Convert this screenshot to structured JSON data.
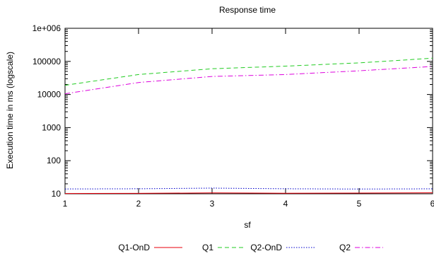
{
  "chart_data": {
    "type": "line",
    "title": "Response time",
    "xlabel": "sf",
    "ylabel": "Execution time in ms (logscale)",
    "x": [
      1,
      2,
      3,
      4,
      5,
      6
    ],
    "xlim": [
      1,
      6
    ],
    "ylim": [
      10,
      1000000
    ],
    "yscale": "log",
    "xticks": [
      "1",
      "2",
      "3",
      "4",
      "5",
      "6"
    ],
    "yticks": [
      {
        "value": 10,
        "label": "10"
      },
      {
        "value": 100,
        "label": "100"
      },
      {
        "value": 1000,
        "label": "1000"
      },
      {
        "value": 10000,
        "label": "10000"
      },
      {
        "value": 100000,
        "label": "100000"
      },
      {
        "value": 1000000,
        "label": "1e+006"
      }
    ],
    "grid": false,
    "legend_position": "bottom",
    "series": [
      {
        "name": "Q1-OnD",
        "color": "#e8000b",
        "dash": "solid",
        "values": [
          10.2,
          10.3,
          10.6,
          10.4,
          10.5,
          10.7
        ]
      },
      {
        "name": "Q1",
        "color": "#22cc22",
        "dash": "long-dash",
        "values": [
          19000,
          40000,
          60000,
          72000,
          90000,
          125000
        ]
      },
      {
        "name": "Q2-OnD",
        "color": "#0000cc",
        "dash": "dotted",
        "values": [
          14,
          14.2,
          14.8,
          14.2,
          13.9,
          14.1
        ]
      },
      {
        "name": "Q2",
        "color": "#dd00dd",
        "dash": "dash-dot",
        "values": [
          10500,
          23000,
          35000,
          40000,
          52000,
          70000
        ]
      }
    ]
  }
}
